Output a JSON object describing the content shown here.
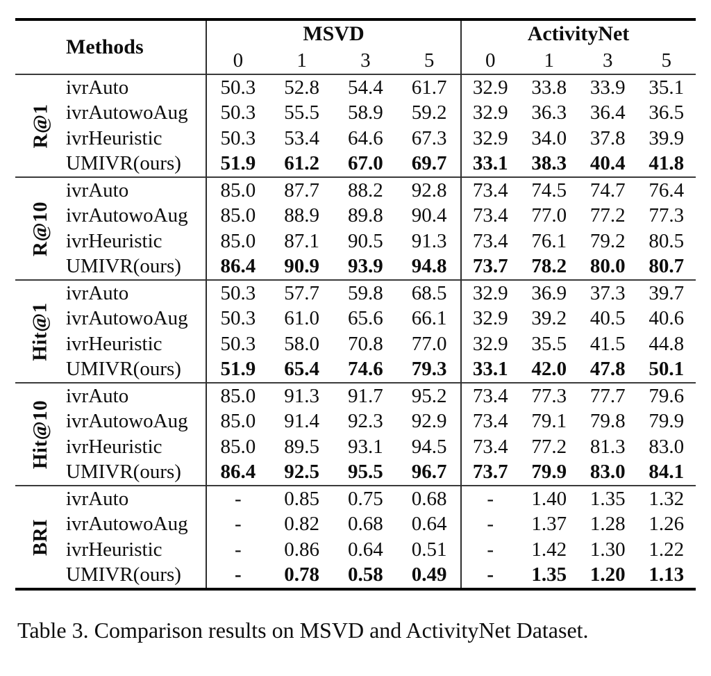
{
  "page": {
    "background": "#ffffff",
    "text_color": "#0d0d0d",
    "rule_color_heavy": "#000000",
    "rule_color_light": "#3a3a3a"
  },
  "caption": "Table 3. Comparison results on MSVD and ActivityNet Dataset.",
  "table": {
    "header": {
      "methods_label": "Methods",
      "groups": [
        {
          "label": "MSVD",
          "subcols": [
            "0",
            "1",
            "3",
            "5"
          ]
        },
        {
          "label": "ActivityNet",
          "subcols": [
            "0",
            "1",
            "3",
            "5"
          ]
        }
      ]
    },
    "blocks": [
      {
        "metric": "R@1",
        "rows": [
          {
            "method": "ivrAuto",
            "bold": false,
            "values": [
              "50.3",
              "52.8",
              "54.4",
              "61.7",
              "32.9",
              "33.8",
              "33.9",
              "35.1"
            ]
          },
          {
            "method": "ivrAutowoAug",
            "bold": false,
            "values": [
              "50.3",
              "55.5",
              "58.9",
              "59.2",
              "32.9",
              "36.3",
              "36.4",
              "36.5"
            ]
          },
          {
            "method": "ivrHeuristic",
            "bold": false,
            "values": [
              "50.3",
              "53.4",
              "64.6",
              "67.3",
              "32.9",
              "34.0",
              "37.8",
              "39.9"
            ]
          },
          {
            "method": "UMIVR(ours)",
            "bold": true,
            "values": [
              "51.9",
              "61.2",
              "67.0",
              "69.7",
              "33.1",
              "38.3",
              "40.4",
              "41.8"
            ]
          }
        ]
      },
      {
        "metric": "R@10",
        "rows": [
          {
            "method": "ivrAuto",
            "bold": false,
            "values": [
              "85.0",
              "87.7",
              "88.2",
              "92.8",
              "73.4",
              "74.5",
              "74.7",
              "76.4"
            ]
          },
          {
            "method": "ivrAutowoAug",
            "bold": false,
            "values": [
              "85.0",
              "88.9",
              "89.8",
              "90.4",
              "73.4",
              "77.0",
              "77.2",
              "77.3"
            ]
          },
          {
            "method": "ivrHeuristic",
            "bold": false,
            "values": [
              "85.0",
              "87.1",
              "90.5",
              "91.3",
              "73.4",
              "76.1",
              "79.2",
              "80.5"
            ]
          },
          {
            "method": "UMIVR(ours)",
            "bold": true,
            "values": [
              "86.4",
              "90.9",
              "93.9",
              "94.8",
              "73.7",
              "78.2",
              "80.0",
              "80.7"
            ]
          }
        ]
      },
      {
        "metric": "Hit@1",
        "rows": [
          {
            "method": "ivrAuto",
            "bold": false,
            "values": [
              "50.3",
              "57.7",
              "59.8",
              "68.5",
              "32.9",
              "36.9",
              "37.3",
              "39.7"
            ]
          },
          {
            "method": "ivrAutowoAug",
            "bold": false,
            "values": [
              "50.3",
              "61.0",
              "65.6",
              "66.1",
              "32.9",
              "39.2",
              "40.5",
              "40.6"
            ]
          },
          {
            "method": "ivrHeuristic",
            "bold": false,
            "values": [
              "50.3",
              "58.0",
              "70.8",
              "77.0",
              "32.9",
              "35.5",
              "41.5",
              "44.8"
            ]
          },
          {
            "method": "UMIVR(ours)",
            "bold": true,
            "values": [
              "51.9",
              "65.4",
              "74.6",
              "79.3",
              "33.1",
              "42.0",
              "47.8",
              "50.1"
            ]
          }
        ]
      },
      {
        "metric": "Hit@10",
        "rows": [
          {
            "method": "ivrAuto",
            "bold": false,
            "values": [
              "85.0",
              "91.3",
              "91.7",
              "95.2",
              "73.4",
              "77.3",
              "77.7",
              "79.6"
            ]
          },
          {
            "method": "ivrAutowoAug",
            "bold": false,
            "values": [
              "85.0",
              "91.4",
              "92.3",
              "92.9",
              "73.4",
              "79.1",
              "79.8",
              "79.9"
            ]
          },
          {
            "method": "ivrHeuristic",
            "bold": false,
            "values": [
              "85.0",
              "89.5",
              "93.1",
              "94.5",
              "73.4",
              "77.2",
              "81.3",
              "83.0"
            ]
          },
          {
            "method": "UMIVR(ours)",
            "bold": true,
            "values": [
              "86.4",
              "92.5",
              "95.5",
              "96.7",
              "73.7",
              "79.9",
              "83.0",
              "84.1"
            ]
          }
        ]
      },
      {
        "metric": "BRI",
        "rows": [
          {
            "method": "ivrAuto",
            "bold": false,
            "values": [
              "-",
              "0.85",
              "0.75",
              "0.68",
              "-",
              "1.40",
              "1.35",
              "1.32"
            ]
          },
          {
            "method": "ivrAutowoAug",
            "bold": false,
            "values": [
              "-",
              "0.82",
              "0.68",
              "0.64",
              "-",
              "1.37",
              "1.28",
              "1.26"
            ]
          },
          {
            "method": "ivrHeuristic",
            "bold": false,
            "values": [
              "-",
              "0.86",
              "0.64",
              "0.51",
              "-",
              "1.42",
              "1.30",
              "1.22"
            ]
          },
          {
            "method": "UMIVR(ours)",
            "bold": true,
            "values": [
              "-",
              "0.78",
              "0.58",
              "0.49",
              "-",
              "1.35",
              "1.20",
              "1.13"
            ]
          }
        ]
      }
    ]
  }
}
